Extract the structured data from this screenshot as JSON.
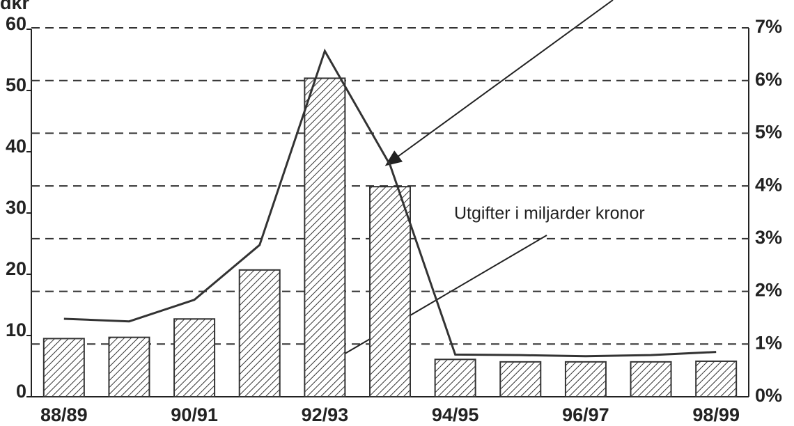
{
  "chart_data": {
    "type": "bar",
    "y_label": "dkr",
    "categories": [
      "88/89",
      null,
      "90/91",
      null,
      "92/93",
      null,
      "94/95",
      null,
      "96/97",
      null,
      "98/99"
    ],
    "series": [
      {
        "name": "Utgifter i miljarder kronor",
        "type": "bar",
        "color": "#333333",
        "values": [
          9.5,
          9.7,
          12.7,
          20.7,
          52,
          34.3,
          6.1,
          5.7,
          5.7,
          5.7,
          5.8
        ]
      },
      {
        "type": "line",
        "axis": "y2",
        "color": "#333333",
        "values": [
          1.48,
          1.43,
          1.84,
          2.88,
          6.56,
          4.4,
          0.8,
          0.79,
          0.77,
          0.79,
          0.85
        ]
      }
    ],
    "ylim": [
      0,
      60
    ],
    "yticks": [
      0,
      10,
      20,
      30,
      40,
      50,
      60
    ],
    "y2lim": [
      0,
      7
    ],
    "y2ticks": [
      {
        "value": 0,
        "label": "0%"
      },
      {
        "value": 1,
        "label": "1%"
      },
      {
        "value": 2,
        "label": "2%"
      },
      {
        "value": 3,
        "label": "3%"
      },
      {
        "value": 4,
        "label": "4%"
      },
      {
        "value": 5,
        "label": "5%"
      },
      {
        "value": 6,
        "label": "6%"
      },
      {
        "value": 7,
        "label": "7%"
      }
    ],
    "grid": true
  }
}
